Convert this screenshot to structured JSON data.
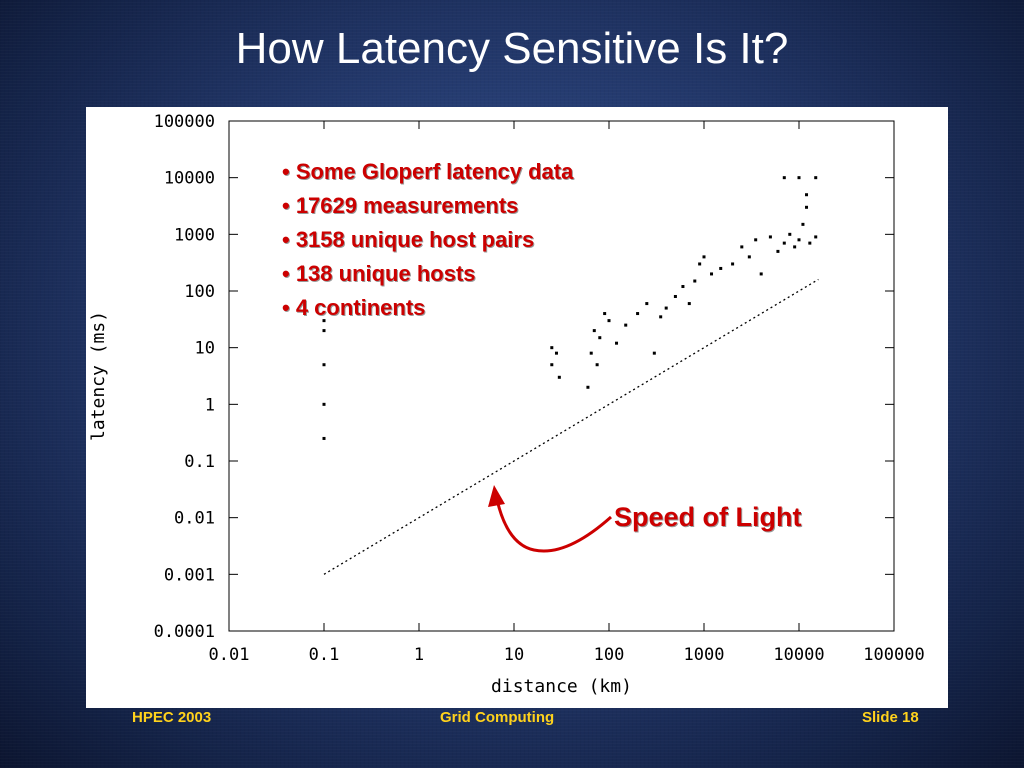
{
  "slide": {
    "title": "How Latency Sensitive Is It?",
    "footer_left": "HPEC 2003",
    "footer_center": "Grid Computing",
    "footer_right": "Slide 18"
  },
  "annotations": {
    "bullets": [
      "• Some Gloperf latency data",
      "• 17629 measurements",
      "• 3158 unique host pairs",
      "• 138 unique hosts",
      "• 4 continents"
    ],
    "speed_of_light": "Speed of Light"
  },
  "colors": {
    "title": "#ffffff",
    "footer": "#ffd21c",
    "annotation": "#cc0000",
    "plot_bg": "#ffffff",
    "points": "#000000"
  },
  "chart_data": {
    "type": "scatter",
    "xlabel": "distance (km)",
    "ylabel": "latency (ms)",
    "xscale": "log",
    "yscale": "log",
    "xlim": [
      0.01,
      100000
    ],
    "ylim": [
      0.0001,
      100000
    ],
    "x_ticks": [
      "0.01",
      "0.1",
      "1",
      "10",
      "100",
      "1000",
      "10000",
      "100000"
    ],
    "y_ticks": [
      "0.0001",
      "0.001",
      "0.01",
      "0.1",
      "1",
      "10",
      "100",
      "1000",
      "10000",
      "100000"
    ],
    "grid": false,
    "series": [
      {
        "name": "",
        "style": "scatter",
        "points": [
          [
            0.1,
            0.25
          ],
          [
            0.1,
            1
          ],
          [
            0.1,
            5
          ],
          [
            0.1,
            20
          ],
          [
            0.1,
            30
          ],
          [
            25,
            10
          ],
          [
            25,
            5
          ],
          [
            28,
            8
          ],
          [
            30,
            3
          ],
          [
            60,
            2
          ],
          [
            65,
            8
          ],
          [
            70,
            20
          ],
          [
            75,
            5
          ],
          [
            80,
            15
          ],
          [
            90,
            40
          ],
          [
            100,
            30
          ],
          [
            120,
            12
          ],
          [
            150,
            25
          ],
          [
            200,
            40
          ],
          [
            250,
            60
          ],
          [
            300,
            8
          ],
          [
            350,
            35
          ],
          [
            400,
            50
          ],
          [
            500,
            80
          ],
          [
            600,
            120
          ],
          [
            700,
            60
          ],
          [
            800,
            150
          ],
          [
            900,
            300
          ],
          [
            1000,
            400
          ],
          [
            1200,
            200
          ],
          [
            1500,
            250
          ],
          [
            2000,
            300
          ],
          [
            2500,
            600
          ],
          [
            3000,
            400
          ],
          [
            3500,
            800
          ],
          [
            4000,
            200
          ],
          [
            5000,
            900
          ],
          [
            6000,
            500
          ],
          [
            7000,
            700
          ],
          [
            8000,
            1000
          ],
          [
            9000,
            600
          ],
          [
            10000,
            800
          ],
          [
            11000,
            1500
          ],
          [
            12000,
            3000
          ],
          [
            13000,
            700
          ],
          [
            15000,
            900
          ],
          [
            7000,
            10000
          ],
          [
            10000,
            10000
          ],
          [
            15000,
            10000
          ],
          [
            12000,
            5000
          ]
        ]
      },
      {
        "name": "",
        "style": "dotted-line",
        "points": [
          [
            0.1,
            0.001
          ],
          [
            16000,
            160
          ]
        ]
      }
    ]
  }
}
